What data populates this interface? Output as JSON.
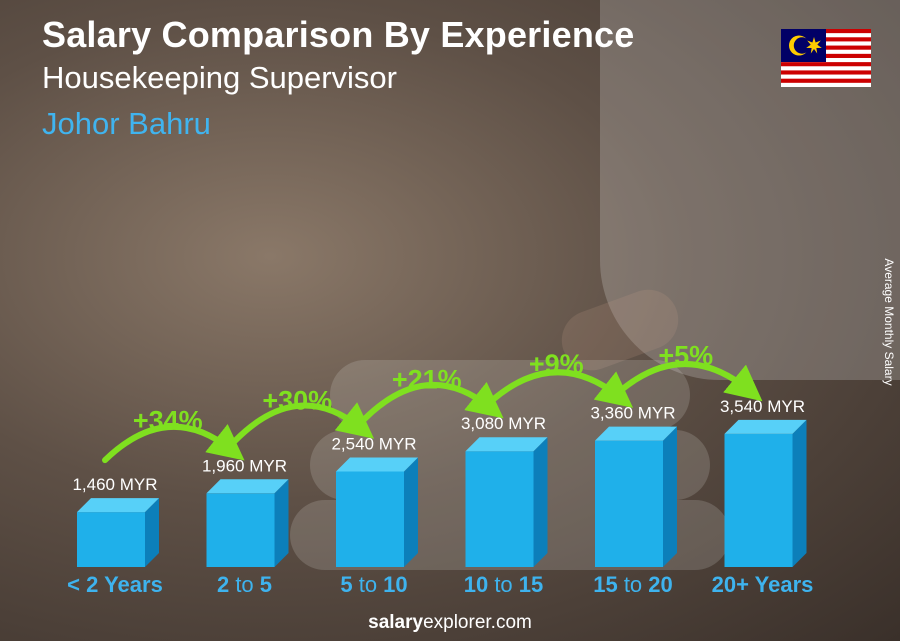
{
  "header": {
    "title": "Salary Comparison By Experience",
    "subtitle": "Housekeeping Supervisor",
    "location": "Johor Bahru"
  },
  "footer": {
    "brand": "salary",
    "rest": "explorer.com"
  },
  "flag": {
    "icon": "malaysia-flag-icon"
  },
  "colors": {
    "bar_front": "#1fb0ea",
    "bar_side": "#0c7fba",
    "bar_top": "#57d0f8",
    "accent_text": "#3eb3ee",
    "arrow_green": "#7fe01f"
  },
  "chart_data": {
    "type": "bar",
    "title": "Salary Comparison By Experience",
    "ylabel": "Average Monthly Salary",
    "xlabel": "",
    "categories": [
      {
        "num1": "< 2 Years",
        "mid": "",
        "num2": ""
      },
      {
        "num1": "2",
        "mid": " to ",
        "num2": "5"
      },
      {
        "num1": "5",
        "mid": " to ",
        "num2": "10"
      },
      {
        "num1": "10",
        "mid": " to ",
        "num2": "15"
      },
      {
        "num1": "15",
        "mid": " to ",
        "num2": "20"
      },
      {
        "num1": "20+ Years",
        "mid": "",
        "num2": ""
      }
    ],
    "values": [
      1460,
      1960,
      2540,
      3080,
      3360,
      3540
    ],
    "value_labels": [
      "1,460 MYR",
      "1,960 MYR",
      "2,540 MYR",
      "3,080 MYR",
      "3,360 MYR",
      "3,540 MYR"
    ],
    "increases": [
      "+34%",
      "+30%",
      "+21%",
      "+9%",
      "+5%"
    ],
    "legend": "none",
    "grid": false
  }
}
